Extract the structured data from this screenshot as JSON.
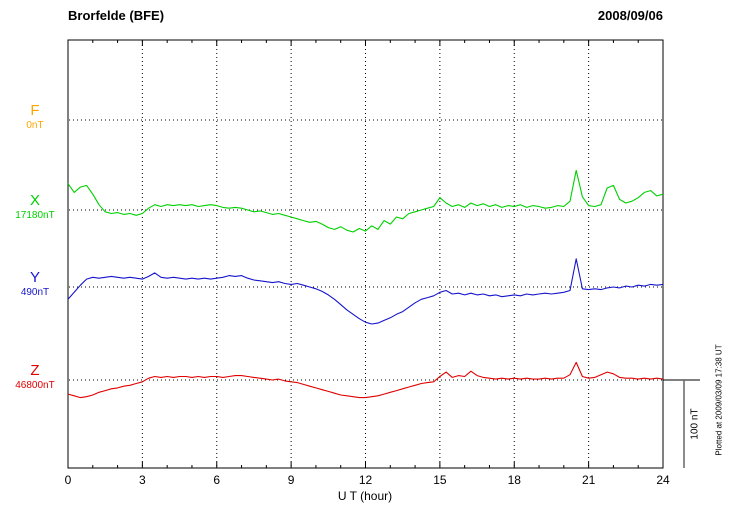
{
  "header": {
    "station": "Brorfelde (BFE)",
    "date": "2008/09/06"
  },
  "axis": {
    "xlabel": "U T (hour)",
    "tick_labels": [
      "0",
      "3",
      "6",
      "9",
      "12",
      "15",
      "18",
      "21",
      "24"
    ],
    "x_min": 0,
    "x_max": 24
  },
  "scale_bar": {
    "label": "100 nT",
    "nT": 100
  },
  "watermark": "Plotted at 2009/03/09 17:38 UT",
  "chart_data": {
    "type": "line",
    "title": "Brorfelde (BFE) magnetogram",
    "date": "2008/09/06",
    "xlabel": "U T (hour)",
    "x_start": 0,
    "x_step": 0.25,
    "x_end": 24,
    "x_ticks": [
      0,
      3,
      6,
      9,
      12,
      15,
      18,
      21,
      24
    ],
    "scale": "100 nT per vertical division",
    "grid": "dotted vertical lines every 3 h; dotted horizontal baseline per component",
    "legend_position": "left margin, one colored label per component",
    "series": [
      {
        "name": "F",
        "baseline_label": "0nT",
        "baseline_nT": 0,
        "color": "#FFA500",
        "offsets_nT": []
      },
      {
        "name": "X",
        "baseline_label": "17180nT",
        "baseline_nT": 17180,
        "color": "#00D000",
        "offsets_nT": [
          30,
          20,
          26,
          28,
          18,
          6,
          -2,
          -4,
          -3,
          -5,
          -4,
          -6,
          -4,
          2,
          6,
          4,
          6,
          5,
          6,
          5,
          6,
          4,
          5,
          6,
          5,
          3,
          2,
          3,
          2,
          0,
          -2,
          -1,
          -3,
          -5,
          -4,
          -6,
          -8,
          -10,
          -12,
          -14,
          -13,
          -16,
          -20,
          -22,
          -19,
          -23,
          -25,
          -21,
          -24,
          -18,
          -22,
          -12,
          -16,
          -8,
          -10,
          -4,
          -2,
          0,
          2,
          4,
          14,
          8,
          4,
          6,
          3,
          8,
          5,
          7,
          4,
          6,
          3,
          5,
          4,
          6,
          3,
          5,
          4,
          2,
          3,
          5,
          4,
          10,
          45,
          15,
          5,
          4,
          6,
          25,
          28,
          12,
          8,
          10,
          14,
          20,
          22,
          16,
          18
        ]
      },
      {
        "name": "Y",
        "baseline_label": "490nT",
        "baseline_nT": 490,
        "color": "#1515CD",
        "offsets_nT": [
          -14,
          -6,
          2,
          9,
          11,
          10,
          11,
          12,
          11,
          10,
          11,
          10,
          9,
          12,
          16,
          11,
          10,
          11,
          10,
          9,
          10,
          9,
          10,
          9,
          10,
          11,
          13,
          12,
          13,
          10,
          8,
          7,
          6,
          5,
          6,
          4,
          3,
          4,
          2,
          0,
          -2,
          -5,
          -9,
          -14,
          -20,
          -26,
          -31,
          -36,
          -40,
          -42,
          -41,
          -38,
          -35,
          -31,
          -28,
          -23,
          -18,
          -14,
          -12,
          -10,
          -6,
          -4,
          -8,
          -7,
          -9,
          -7,
          -9,
          -8,
          -10,
          -9,
          -11,
          -10,
          -9,
          -10,
          -8,
          -9,
          -8,
          -7,
          -8,
          -7,
          -6,
          -4,
          32,
          -2,
          -3,
          -2,
          -3,
          -1,
          0,
          -1,
          1,
          0,
          2,
          1,
          3,
          2,
          3
        ]
      },
      {
        "name": "Z",
        "baseline_label": "46800nT",
        "baseline_nT": 46800,
        "color": "#E00000",
        "offsets_nT": [
          -16,
          -18,
          -20,
          -19,
          -17,
          -14,
          -12,
          -10,
          -9,
          -7,
          -6,
          -4,
          -2,
          2,
          4,
          3,
          4,
          3,
          4,
          4,
          3,
          4,
          3,
          4,
          4,
          3,
          4,
          5,
          5,
          4,
          3,
          2,
          1,
          0,
          1,
          -1,
          -2,
          -3,
          -5,
          -7,
          -9,
          -11,
          -13,
          -15,
          -17,
          -18,
          -19,
          -20,
          -20,
          -19,
          -18,
          -16,
          -14,
          -12,
          -10,
          -8,
          -6,
          -4,
          -3,
          -2,
          4,
          9,
          3,
          5,
          4,
          10,
          5,
          3,
          2,
          1,
          2,
          1,
          2,
          1,
          2,
          1,
          1,
          2,
          1,
          2,
          2,
          6,
          20,
          4,
          2,
          3,
          6,
          9,
          7,
          3,
          2,
          2,
          1,
          2,
          1,
          2,
          1
        ]
      }
    ]
  }
}
